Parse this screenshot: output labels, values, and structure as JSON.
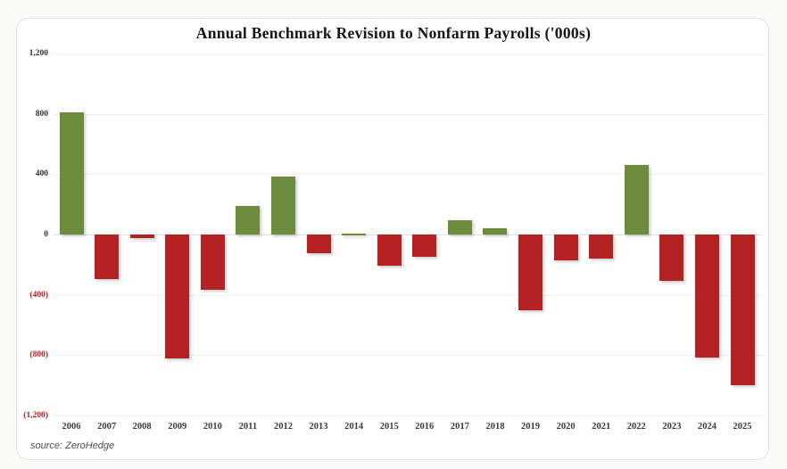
{
  "chart_data": {
    "type": "bar",
    "title": "Annual Benchmark Revision to Nonfarm Payrolls ('000s)",
    "xlabel": "",
    "ylabel": "",
    "categories": [
      "2006",
      "2007",
      "2008",
      "2009",
      "2010",
      "2011",
      "2012",
      "2013",
      "2014",
      "2015",
      "2016",
      "2017",
      "2018",
      "2019",
      "2020",
      "2021",
      "2022",
      "2023",
      "2024",
      "2025"
    ],
    "values": [
      810,
      -297,
      -21,
      -824,
      -366,
      192,
      386,
      -124,
      7,
      -208,
      -150,
      95,
      43,
      -501,
      -173,
      -161,
      462,
      -306,
      -818,
      -1000
    ],
    "ylim": [
      -1200,
      1200
    ],
    "yticks": [
      {
        "value": 1200,
        "label": "1,200"
      },
      {
        "value": 800,
        "label": "800"
      },
      {
        "value": 400,
        "label": "400"
      },
      {
        "value": 0,
        "label": "0"
      },
      {
        "value": -400,
        "label": "(400)"
      },
      {
        "value": -800,
        "label": "(800)"
      },
      {
        "value": -1200,
        "label": "(1,200)"
      }
    ],
    "grid": true,
    "legend": null,
    "colors": {
      "positive_bar": "#6d8b3c",
      "negative_bar": "#b32122",
      "negative_tick_label": "#b32122",
      "tick_label": "#2e2e2e"
    }
  },
  "footer": {
    "source_label": "source: ZeroHedge"
  }
}
